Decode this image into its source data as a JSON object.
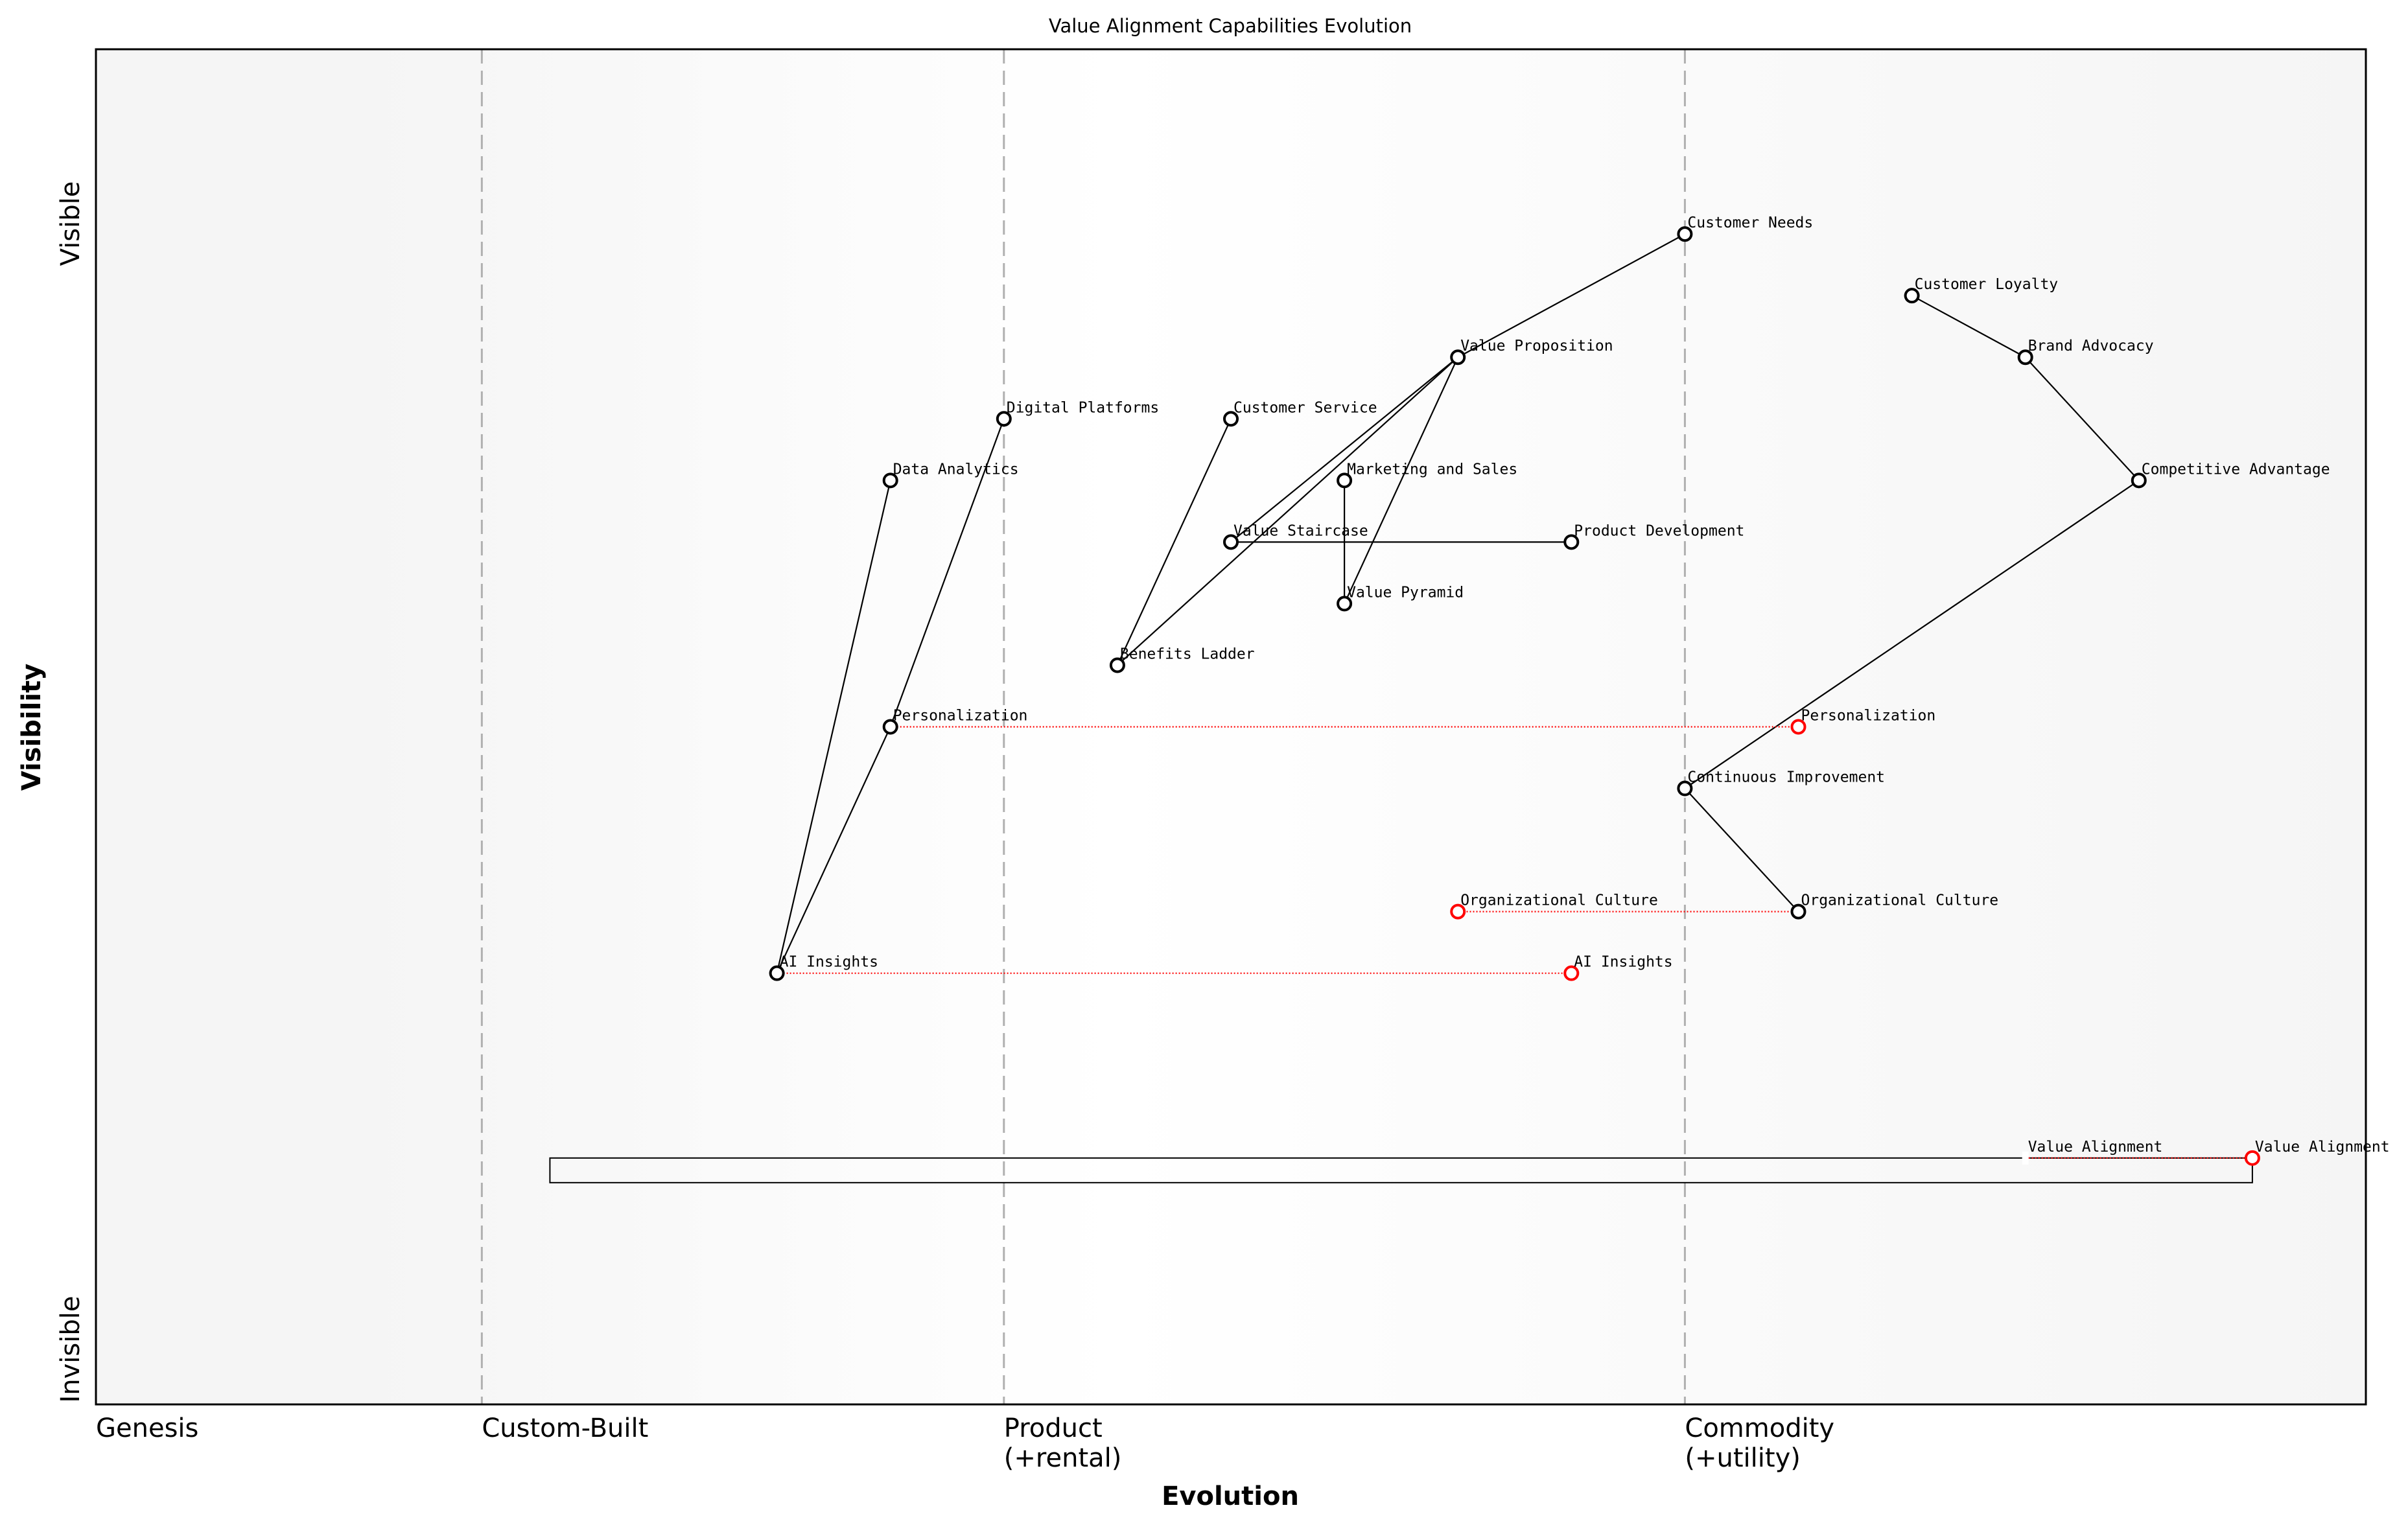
{
  "title": "Value Alignment Capabilities Evolution",
  "axes": {
    "xlabel": "Evolution",
    "ylabel": "Visibility",
    "y_top_label": "Visible",
    "y_bottom_label": "Invisible",
    "xlim": [
      0,
      1
    ],
    "ylim": [
      0,
      1.1
    ]
  },
  "stages": [
    {
      "x": 0.0,
      "lines": [
        "Genesis"
      ]
    },
    {
      "x": 0.17,
      "lines": [
        "Custom-Built"
      ]
    },
    {
      "x": 0.4,
      "lines": [
        "Product",
        "(+rental)"
      ]
    },
    {
      "x": 0.7,
      "lines": [
        "Commodity",
        "(+utility)"
      ]
    }
  ],
  "colors": {
    "node": "#000000",
    "evolved_node": "#ff0000",
    "evolve_line": "#ff0000",
    "stage_divider": "#b0b0b0",
    "background_edge": "#f5f5f5",
    "background_center": "#ffffff"
  },
  "chart_data": {
    "type": "wardley-map",
    "title": "Value Alignment Capabilities Evolution",
    "xlabel": "Evolution",
    "ylabel": "Visibility",
    "nodes": [
      {
        "id": "customer_needs",
        "label": "Customer Needs",
        "x": 0.7,
        "y": 0.95
      },
      {
        "id": "customer_loyalty",
        "label": "Customer Loyalty",
        "x": 0.8,
        "y": 0.9
      },
      {
        "id": "brand_advocacy",
        "label": "Brand Advocacy",
        "x": 0.85,
        "y": 0.85
      },
      {
        "id": "value_proposition",
        "label": "Value Proposition",
        "x": 0.6,
        "y": 0.85
      },
      {
        "id": "digital_platforms",
        "label": "Digital Platforms",
        "x": 0.4,
        "y": 0.8
      },
      {
        "id": "customer_service",
        "label": "Customer Service",
        "x": 0.5,
        "y": 0.8
      },
      {
        "id": "data_analytics",
        "label": "Data Analytics",
        "x": 0.35,
        "y": 0.75
      },
      {
        "id": "marketing_sales",
        "label": "Marketing and Sales",
        "x": 0.55,
        "y": 0.75
      },
      {
        "id": "competitive_advantage",
        "label": "Competitive Advantage",
        "x": 0.9,
        "y": 0.75
      },
      {
        "id": "value_staircase",
        "label": "Value Staircase",
        "x": 0.5,
        "y": 0.7
      },
      {
        "id": "product_development",
        "label": "Product Development",
        "x": 0.65,
        "y": 0.7
      },
      {
        "id": "value_pyramid",
        "label": "Value Pyramid",
        "x": 0.55,
        "y": 0.65
      },
      {
        "id": "benefits_ladder",
        "label": "Benefits Ladder",
        "x": 0.45,
        "y": 0.6
      },
      {
        "id": "personalization",
        "label": "Personalization",
        "x": 0.35,
        "y": 0.55
      },
      {
        "id": "continuous_improvement",
        "label": "Continuous Improvement",
        "x": 0.7,
        "y": 0.5
      },
      {
        "id": "organizational_culture",
        "label": "Organizational Culture",
        "x": 0.75,
        "y": 0.4
      },
      {
        "id": "ai_insights",
        "label": "AI Insights",
        "x": 0.3,
        "y": 0.35
      },
      {
        "id": "value_alignment",
        "label": "Value Alignment",
        "x": 0.85,
        "y": 0.2,
        "hidden_marker": true
      }
    ],
    "evolved_nodes": [
      {
        "from": "personalization",
        "label": "Personalization",
        "x": 0.75,
        "y": 0.55
      },
      {
        "from": "organizational_culture",
        "label": "Organizational Culture",
        "x": 0.6,
        "y": 0.4
      },
      {
        "from": "ai_insights",
        "label": "AI Insights",
        "x": 0.65,
        "y": 0.35
      },
      {
        "from": "value_alignment",
        "label": "Value Alignment",
        "x": 0.95,
        "y": 0.2
      }
    ],
    "links": [
      [
        "customer_needs",
        "value_proposition"
      ],
      [
        "customer_loyalty",
        "brand_advocacy"
      ],
      [
        "brand_advocacy",
        "competitive_advantage"
      ],
      [
        "competitive_advantage",
        "continuous_improvement"
      ],
      [
        "continuous_improvement",
        "organizational_culture"
      ],
      [
        "value_proposition",
        "value_staircase"
      ],
      [
        "value_proposition",
        "benefits_ladder"
      ],
      [
        "value_proposition",
        "value_pyramid"
      ],
      [
        "customer_service",
        "benefits_ladder"
      ],
      [
        "marketing_sales",
        "value_pyramid"
      ],
      [
        "value_staircase",
        "product_development"
      ],
      [
        "data_analytics",
        "ai_insights"
      ],
      [
        "digital_platforms",
        "personalization"
      ],
      [
        "personalization",
        "ai_insights"
      ]
    ],
    "boxes": [
      {
        "x0": 0.2,
        "x1": 0.95,
        "y0": 0.18,
        "y1": 0.2
      }
    ]
  }
}
